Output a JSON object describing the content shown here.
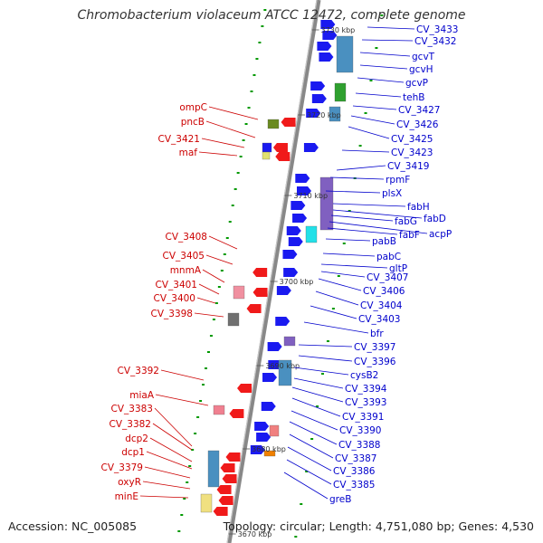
{
  "title": "Chromobacterium violaceum ATCC 12472, complete genome",
  "footer": {
    "accession": "Accession: NC_005085",
    "topology": "Topology: circular; Length: 4,751,080 bp; Genes: 4,530"
  },
  "colors": {
    "forward_label": "#0000cc",
    "reverse_label": "#cc0000",
    "forward_gene": "#1a1af0",
    "reverse_gene": "#f01a1a",
    "backbone": "#888888",
    "gc_tick": "#009900"
  },
  "scale_labels": [
    "3730 kbp",
    "3720 kbp",
    "3710 kbp",
    "3700 kbp",
    "3690 kbp",
    "3680 kbp",
    "3670 kbp"
  ],
  "forward_labels": [
    "CV_3433",
    "CV_3432",
    "gcvT",
    "gcvH",
    "gcvP",
    "tehB",
    "CV_3427",
    "CV_3426",
    "CV_3425",
    "CV_3423",
    "CV_3419",
    "rpmF",
    "plsX",
    "fabH",
    "fabD",
    "fabG",
    "acpP",
    "fabF",
    "pabB",
    "pabC",
    "gltP",
    "CV_3407",
    "CV_3406",
    "CV_3404",
    "CV_3403",
    "bfr",
    "CV_3397",
    "CV_3396",
    "cysB2",
    "CV_3394",
    "CV_3393",
    "CV_3391",
    "CV_3390",
    "CV_3388",
    "CV_3387",
    "CV_3386",
    "CV_3385",
    "greB"
  ],
  "reverse_labels": [
    "ompC",
    "pncB",
    "CV_3421",
    "maf",
    "CV_3408",
    "CV_3405",
    "mnmA",
    "CV_3401",
    "CV_3400",
    "CV_3398",
    "CV_3392",
    "miaA",
    "CV_3383",
    "CV_3382",
    "dcp2",
    "dcp1",
    "CV_3379",
    "oxyR",
    "minE"
  ]
}
